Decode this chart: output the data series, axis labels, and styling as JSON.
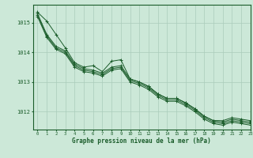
{
  "title": "Graphe pression niveau de la mer (hPa)",
  "background_color": "#cce8d8",
  "grid_color": "#aaccbb",
  "line_color": "#1a5c2a",
  "xlim": [
    -0.5,
    23
  ],
  "ylim": [
    1011.4,
    1015.6
  ],
  "yticks": [
    1012,
    1013,
    1014,
    1015
  ],
  "xticks": [
    0,
    1,
    2,
    3,
    4,
    5,
    6,
    7,
    8,
    9,
    10,
    11,
    12,
    13,
    14,
    15,
    16,
    17,
    18,
    19,
    20,
    21,
    22,
    23
  ],
  "series": [
    [
      1015.35,
      1015.05,
      1014.6,
      1014.15,
      1013.65,
      1013.5,
      1013.55,
      1013.35,
      1013.7,
      1013.75,
      1013.1,
      1013.0,
      1012.85,
      1012.6,
      1012.45,
      1012.45,
      1012.3,
      1012.1,
      1011.85,
      1011.7,
      1011.7,
      1011.8,
      1011.75,
      1011.7
    ],
    [
      1015.3,
      1014.6,
      1014.2,
      1014.05,
      1013.6,
      1013.45,
      1013.4,
      1013.3,
      1013.5,
      1013.55,
      1013.1,
      1013.0,
      1012.85,
      1012.6,
      1012.45,
      1012.45,
      1012.3,
      1012.1,
      1011.85,
      1011.7,
      1011.65,
      1011.75,
      1011.7,
      1011.65
    ],
    [
      1015.25,
      1014.55,
      1014.15,
      1014.0,
      1013.55,
      1013.4,
      1013.35,
      1013.25,
      1013.45,
      1013.5,
      1013.05,
      1012.95,
      1012.8,
      1012.55,
      1012.4,
      1012.4,
      1012.25,
      1012.05,
      1011.8,
      1011.65,
      1011.6,
      1011.7,
      1011.65,
      1011.6
    ],
    [
      1015.2,
      1014.5,
      1014.1,
      1013.95,
      1013.5,
      1013.35,
      1013.3,
      1013.2,
      1013.4,
      1013.45,
      1013.0,
      1012.9,
      1012.75,
      1012.5,
      1012.35,
      1012.35,
      1012.2,
      1012.0,
      1011.75,
      1011.6,
      1011.55,
      1011.65,
      1011.6,
      1011.55
    ]
  ]
}
